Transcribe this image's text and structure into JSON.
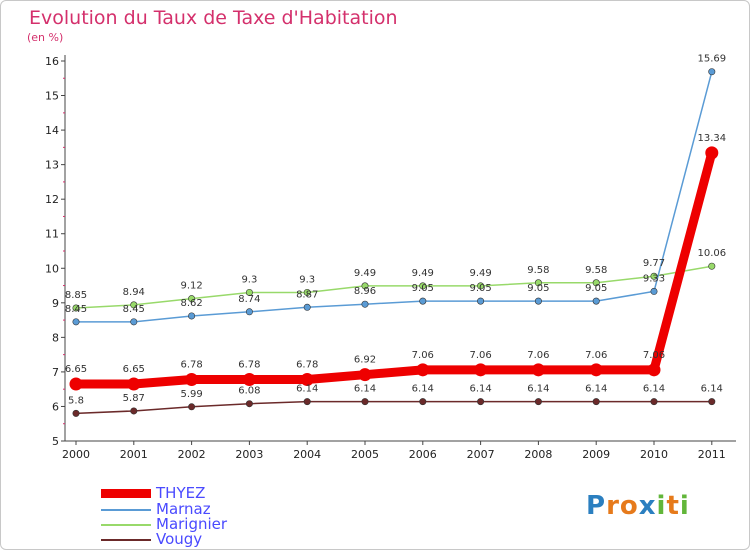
{
  "colors": {
    "title": "#d4306c",
    "axis_labels": "#222222",
    "THYEZ": "#ee0000",
    "Marnaz": "#5a9bd5",
    "Marignier": "#98d96a",
    "Vougy": "#6b2a2a"
  },
  "brand": {
    "text": "Proxiti",
    "letters": [
      "P",
      "r",
      "o",
      "x",
      "i",
      "t",
      "i"
    ],
    "letter_colors": [
      "#2b7fc0",
      "#e67a1b",
      "#e67a1b",
      "#2b7fc0",
      "#62b63a",
      "#e67a1b",
      "#62b63a"
    ]
  },
  "chart_data": {
    "type": "line",
    "title": "Evolution du Taux de Taxe d'Habitation",
    "ylabel": "(en %)",
    "xlabel": "",
    "x": [
      "2000",
      "2001",
      "2002",
      "2003",
      "2004",
      "2005",
      "2006",
      "2007",
      "2008",
      "2009",
      "2010",
      "2011"
    ],
    "ylim": [
      5,
      16
    ],
    "yticks": [
      "5",
      "6",
      "7",
      "8",
      "9",
      "10",
      "11",
      "12",
      "13",
      "14",
      "15",
      "16"
    ],
    "grid": false,
    "legend_placement": "bottom-left",
    "series": [
      {
        "name": "THYEZ",
        "values": [
          6.65,
          6.65,
          6.78,
          6.78,
          6.78,
          6.92,
          7.06,
          7.06,
          7.06,
          7.06,
          7.06,
          13.34
        ],
        "labels": [
          "6.65",
          "6.65",
          "6.78",
          "6.78",
          "6.78",
          "6.92",
          "7.06",
          "7.06",
          "7.06",
          "7.06",
          "7.06",
          "13.34"
        ]
      },
      {
        "name": "Marnaz",
        "values": [
          8.45,
          8.45,
          8.62,
          8.74,
          8.87,
          8.96,
          9.05,
          9.05,
          9.05,
          9.05,
          9.33,
          15.69
        ],
        "labels": [
          "8.45",
          "8.45",
          "8.62",
          "8.74",
          "8.87",
          "8.96",
          "9.05",
          "9.05",
          "9.05",
          "9.05",
          "9.33",
          "15.69"
        ]
      },
      {
        "name": "Marignier",
        "values": [
          8.85,
          8.94,
          9.12,
          9.3,
          9.3,
          9.49,
          9.49,
          9.49,
          9.58,
          9.58,
          9.77,
          10.06
        ],
        "labels": [
          "8.85",
          "8.94",
          "9.12",
          "9.3",
          "9.3",
          "9.49",
          "9.49",
          "9.49",
          "9.58",
          "9.58",
          "9.77",
          "10.06"
        ]
      },
      {
        "name": "Vougy",
        "values": [
          5.8,
          5.87,
          5.99,
          6.08,
          6.14,
          6.14,
          6.14,
          6.14,
          6.14,
          6.14,
          6.14,
          6.14
        ],
        "labels": [
          "5.8",
          "5.87",
          "5.99",
          "6.08",
          "6.14",
          "6.14",
          "6.14",
          "6.14",
          "6.14",
          "6.14",
          "6.14",
          "6.14"
        ]
      }
    ]
  }
}
